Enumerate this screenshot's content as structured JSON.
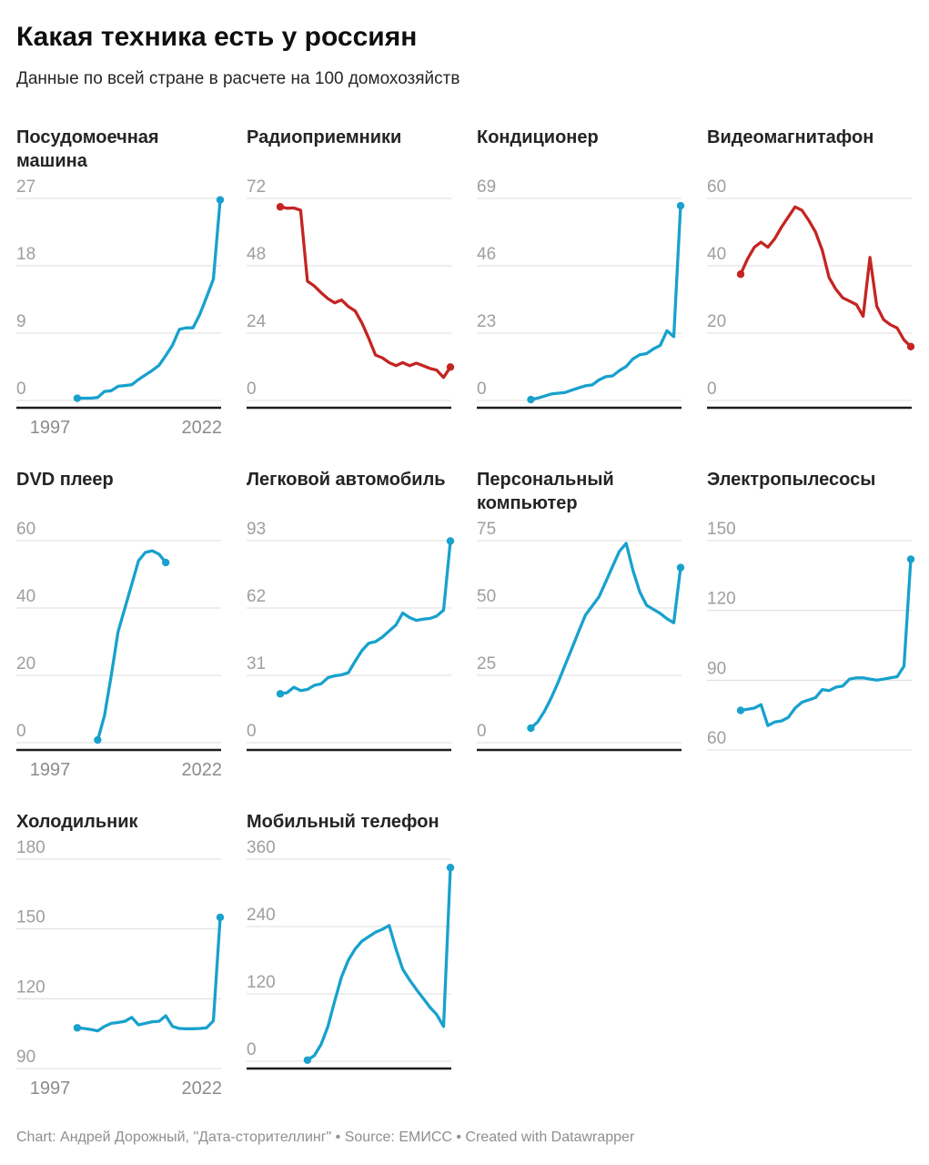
{
  "header": {
    "title": "Какая техника есть у россиян",
    "subtitle": "Данные по всей стране в расчете на 100 домохозяйств"
  },
  "footer": {
    "credits": "Chart: Андрей Дорожный, \"Дата-сторителлинг\" • Source: ЕМИСС • Created with Datawrapper"
  },
  "palette": {
    "blue": "#18a1cd",
    "red": "#c42523",
    "grid": "#dcdcdc",
    "axis": "#1d1d1d",
    "tick_label": "#9e9e9e",
    "x_label": "#8c8c8c"
  },
  "axis": {
    "x_domain": [
      1997,
      2022
    ],
    "x_tick_labels": [
      "1997",
      "2022"
    ]
  },
  "chart_data": [
    {
      "id": "dishwasher",
      "type": "line",
      "title": "Посудомоечная машина",
      "color": "blue",
      "y_ticks": [
        0,
        9,
        18,
        27
      ],
      "start_year": 2001,
      "show_x_labels": true,
      "values": [
        0.3,
        0.3,
        0.3,
        0.4,
        1.2,
        1.3,
        1.9,
        2.0,
        2.1,
        2.8,
        3.4,
        4.0,
        4.7,
        6.0,
        7.4,
        9.5,
        9.7,
        9.7,
        11.5,
        13.8,
        16.2,
        26.8
      ]
    },
    {
      "id": "radio",
      "type": "line",
      "title": "Радиоприемники",
      "color": "red",
      "y_ticks": [
        0,
        24,
        48,
        72
      ],
      "start_year": 1997,
      "show_x_labels": false,
      "values": [
        69,
        68.5,
        68.6,
        67.8,
        42.5,
        40.8,
        38.4,
        36.3,
        34.8,
        35.8,
        33.5,
        31.9,
        27.6,
        22.2,
        16.2,
        15.2,
        13.5,
        12.4,
        13.5,
        12.4,
        13.3,
        12.4,
        11.4,
        10.8,
        8.2,
        11.9
      ]
    },
    {
      "id": "air-conditioner",
      "type": "line",
      "title": "Кондиционер",
      "color": "blue",
      "y_ticks": [
        0,
        23,
        46,
        69
      ],
      "start_year": 2000,
      "show_x_labels": false,
      "values": [
        0.3,
        0.8,
        1.5,
        2.2,
        2.5,
        2.7,
        3.5,
        4.3,
        5.0,
        5.3,
        7.0,
        8.1,
        8.4,
        10.2,
        11.6,
        14.2,
        15.6,
        16.0,
        17.6,
        18.8,
        23.8,
        21.8,
        66.5
      ]
    },
    {
      "id": "vcr",
      "type": "line",
      "title": "Видеомагнитафон",
      "color": "red",
      "y_ticks": [
        0,
        20,
        40,
        60
      ],
      "start_year": 1997,
      "show_x_labels": false,
      "values": [
        37.5,
        42,
        45.5,
        47,
        45.5,
        48,
        51.5,
        54.5,
        57.5,
        56.5,
        53.5,
        50,
        44.5,
        36.5,
        33,
        30.5,
        29.5,
        28.5,
        25,
        42.5,
        28,
        24,
        22.5,
        21.5,
        18,
        16
      ]
    },
    {
      "id": "dvd-player",
      "type": "line",
      "title": "DVD плеер",
      "color": "blue",
      "y_ticks": [
        0,
        20,
        40,
        60
      ],
      "start_year": 2004,
      "show_x_labels": true,
      "values": [
        0.8,
        8,
        20,
        33,
        40,
        47,
        54,
        56.5,
        57,
        56,
        53.5
      ]
    },
    {
      "id": "car",
      "type": "line",
      "title": "Легковой автомобиль",
      "color": "blue",
      "y_ticks": [
        0,
        31,
        62,
        93
      ],
      "start_year": 1997,
      "show_x_labels": false,
      "values": [
        22.5,
        23,
        25.5,
        24,
        24.5,
        26.4,
        27.1,
        29.9,
        30.8,
        31.2,
        32.2,
        37.5,
        42.4,
        45.8,
        46.5,
        48.6,
        51.4,
        54.2,
        59.7,
        57.6,
        56.3,
        56.9,
        57.2,
        58.3,
        61,
        92.8
      ]
    },
    {
      "id": "personal-computer",
      "type": "line",
      "title": "Персональный компьютер",
      "color": "blue",
      "y_ticks": [
        0,
        25,
        50,
        75
      ],
      "start_year": 2000,
      "show_x_labels": false,
      "values": [
        5.4,
        7.7,
        11.7,
        16.7,
        22.4,
        28.6,
        34.8,
        41.1,
        47.3,
        50.7,
        54.1,
        59.7,
        65.4,
        71,
        74,
        64,
        56,
        51,
        49.5,
        48,
        46,
        44.5,
        65
      ]
    },
    {
      "id": "vacuum-cleaner",
      "type": "line",
      "title": "Электропылесосы",
      "color": "blue",
      "y_ticks": [
        60,
        90,
        120,
        150
      ],
      "start_year": 1997,
      "show_x_labels": false,
      "values": [
        77,
        77.5,
        78,
        79.5,
        70.5,
        72,
        72.5,
        74,
        78,
        80.5,
        81.5,
        82.5,
        86,
        85.5,
        87,
        87.5,
        90.5,
        91,
        91,
        90.5,
        90,
        90.5,
        91,
        91.5,
        96,
        142
      ]
    },
    {
      "id": "refrigerator",
      "type": "line",
      "title": "Холодильник",
      "color": "blue",
      "y_ticks": [
        90,
        120,
        150,
        180
      ],
      "start_year": 2001,
      "show_x_labels": true,
      "values": [
        107.5,
        107.2,
        106.8,
        106.2,
        108.1,
        109.4,
        109.8,
        110.3,
        112,
        108.8,
        109.4,
        110.1,
        110.3,
        112.7,
        108.1,
        107.2,
        107.1,
        107.1,
        107.2,
        107.5,
        110.5,
        155
      ]
    },
    {
      "id": "mobile-phone",
      "type": "line",
      "title": "Мобильный телефон",
      "color": "blue",
      "y_ticks": [
        0,
        120,
        240,
        360
      ],
      "start_year": 2001,
      "show_x_labels": false,
      "values": [
        2,
        10,
        30,
        62,
        107,
        150,
        180,
        200,
        214,
        222,
        230,
        235,
        242,
        200,
        164,
        145,
        128,
        112,
        96,
        83,
        62,
        345
      ]
    }
  ]
}
